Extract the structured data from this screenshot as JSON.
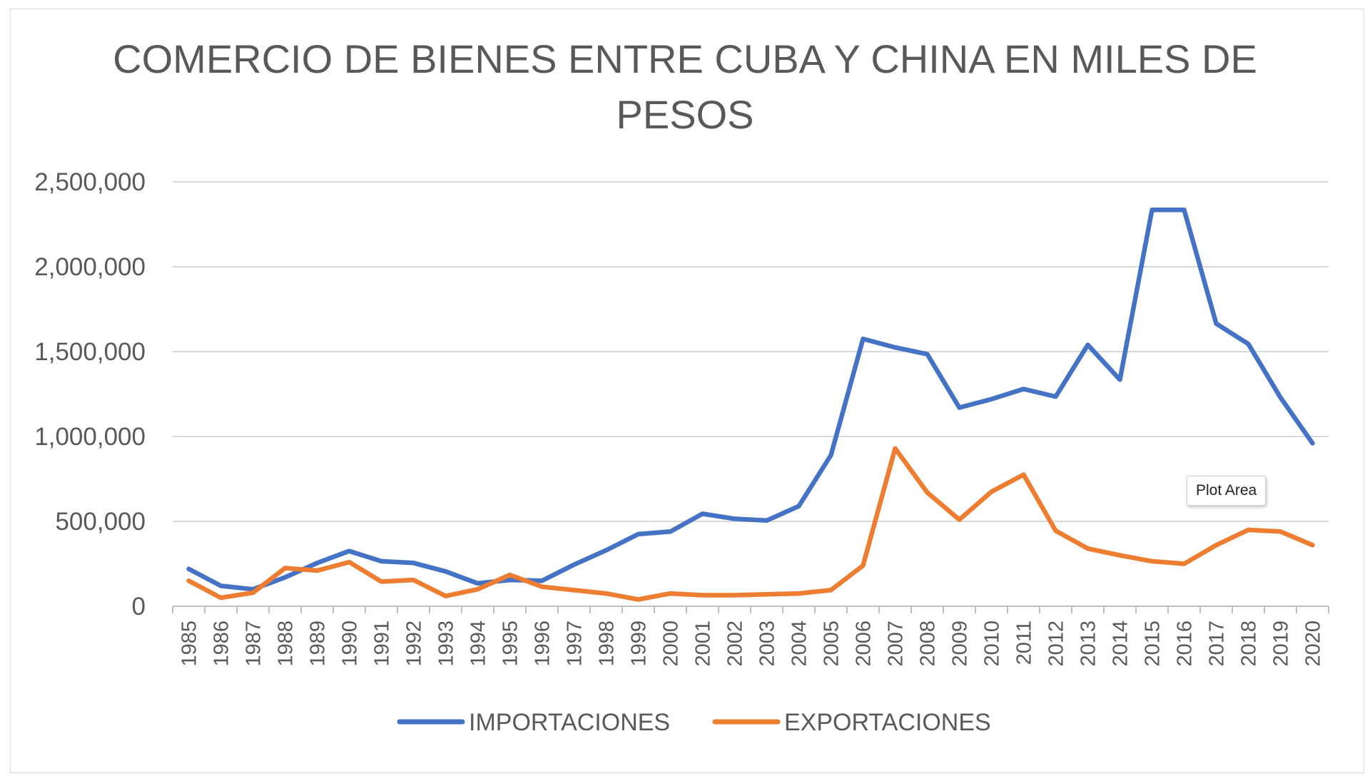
{
  "tooltip": {
    "text": "Plot Area"
  },
  "chart_data": {
    "type": "line",
    "title_lines": [
      "COMERCIO DE BIENES ENTRE CUBA Y CHINA EN MILES DE",
      "PESOS"
    ],
    "xlabel": "",
    "ylabel": "",
    "ylim": [
      0,
      2500000
    ],
    "yticks": [
      0,
      500000,
      1000000,
      1500000,
      2000000,
      2500000
    ],
    "ytick_labels": [
      "0",
      "500,000",
      "1,000,000",
      "1,500,000",
      "2,000,000",
      "2,500,000"
    ],
    "grid": true,
    "legend_position": "bottom",
    "categories": [
      "1985",
      "1986",
      "1987",
      "1988",
      "1989",
      "1990",
      "1991",
      "1992",
      "1993",
      "1994",
      "1995",
      "1996",
      "1997",
      "1998",
      "1999",
      "2000",
      "2001",
      "2002",
      "2003",
      "2004",
      "2005",
      "2006",
      "2007",
      "2008",
      "2009",
      "2010",
      "2011",
      "2012",
      "2013",
      "2014",
      "2015",
      "2016",
      "2017",
      "2018",
      "2019",
      "2020"
    ],
    "series": [
      {
        "name": "IMPORTACIONES",
        "color": "#4472c4",
        "values": [
          220000,
          120000,
          100000,
          170000,
          255000,
          325000,
          265000,
          255000,
          205000,
          135000,
          155000,
          150000,
          245000,
          330000,
          425000,
          440000,
          545000,
          515000,
          505000,
          590000,
          890000,
          1575000,
          1525000,
          1485000,
          1170000,
          1220000,
          1280000,
          1235000,
          1540000,
          1335000,
          2335000,
          2335000,
          1665000,
          1545000,
          1230000,
          960000
        ]
      },
      {
        "name": "EXPORTACIONES",
        "color": "#ed7d31",
        "values": [
          150000,
          50000,
          80000,
          225000,
          210000,
          260000,
          145000,
          155000,
          60000,
          100000,
          185000,
          115000,
          95000,
          75000,
          40000,
          75000,
          65000,
          65000,
          70000,
          75000,
          95000,
          240000,
          930000,
          670000,
          510000,
          675000,
          775000,
          445000,
          340000,
          300000,
          265000,
          250000,
          360000,
          450000,
          440000,
          360000
        ]
      }
    ]
  }
}
